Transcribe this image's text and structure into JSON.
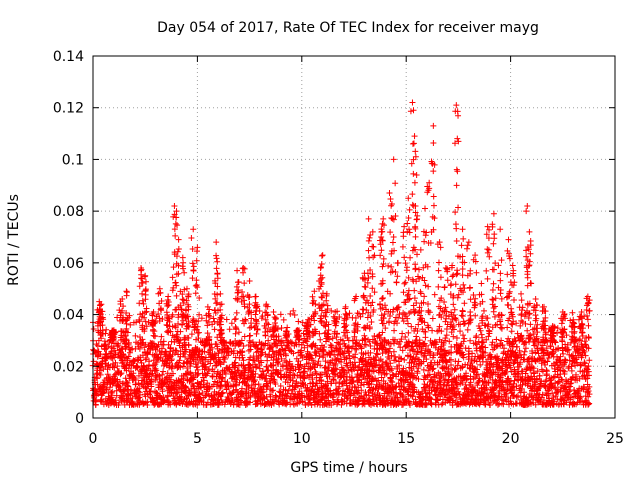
{
  "chart_data": {
    "type": "scatter",
    "title": "Day 054 of 2017, Rate Of TEC Index for receiver mayg",
    "xlabel": "GPS time / hours",
    "ylabel": "ROTI / TECUs",
    "xlim": [
      0,
      25
    ],
    "ylim": [
      0,
      0.14
    ],
    "xticks": [
      "0",
      "5",
      "10",
      "15",
      "20",
      "25"
    ],
    "yticks": [
      "0",
      "0.02",
      "0.04",
      "0.06",
      "0.08",
      "0.1",
      "0.12",
      "0.14"
    ],
    "grid": true,
    "marker": "plus",
    "series": [
      {
        "name": "ROTI",
        "color": "#ff0000",
        "x": [
          0.3,
          0.4,
          0.9,
          1.0,
          1.4,
          1.6,
          2.3,
          2.5,
          2.9,
          3.2,
          3.6,
          3.9,
          4.0,
          4.1,
          4.3,
          4.5,
          4.8,
          5.0,
          5.5,
          5.9,
          6.1,
          6.9,
          7.2,
          7.5,
          7.8,
          8.3,
          8.7,
          9.3,
          9.8,
          10.3,
          10.6,
          10.9,
          11.0,
          11.2,
          11.6,
          12.1,
          12.6,
          13.0,
          13.2,
          13.4,
          13.8,
          13.9,
          14.2,
          14.4,
          14.6,
          14.9,
          15.1,
          15.3,
          15.4,
          15.5,
          15.7,
          15.9,
          16.1,
          16.3,
          16.6,
          16.9,
          17.2,
          17.4,
          17.5,
          17.7,
          18.0,
          18.3,
          18.6,
          18.9,
          19.2,
          19.5,
          19.9,
          20.1,
          20.5,
          20.8,
          20.9,
          21.2,
          21.6,
          22.0,
          22.5,
          23.0,
          23.4,
          23.7
        ],
        "y": [
          0.045,
          0.044,
          0.033,
          0.034,
          0.046,
          0.049,
          0.058,
          0.055,
          0.041,
          0.05,
          0.047,
          0.082,
          0.08,
          0.069,
          0.062,
          0.05,
          0.073,
          0.066,
          0.043,
          0.068,
          0.048,
          0.057,
          0.058,
          0.053,
          0.047,
          0.044,
          0.039,
          0.035,
          0.034,
          0.038,
          0.049,
          0.058,
          0.063,
          0.048,
          0.041,
          0.043,
          0.047,
          0.056,
          0.077,
          0.072,
          0.07,
          0.077,
          0.087,
          0.1,
          0.06,
          0.074,
          0.085,
          0.122,
          0.109,
          0.094,
          0.065,
          0.081,
          0.091,
          0.113,
          0.068,
          0.058,
          0.059,
          0.121,
          0.107,
          0.073,
          0.068,
          0.063,
          0.052,
          0.074,
          0.079,
          0.073,
          0.069,
          0.059,
          0.048,
          0.082,
          0.072,
          0.046,
          0.043,
          0.035,
          0.041,
          0.038,
          0.041,
          0.047
        ],
        "baseline_band": [
          0.005,
          0.03
        ],
        "sample_interval_hours": 0.035,
        "x_range": [
          0,
          23.8
        ]
      }
    ]
  }
}
